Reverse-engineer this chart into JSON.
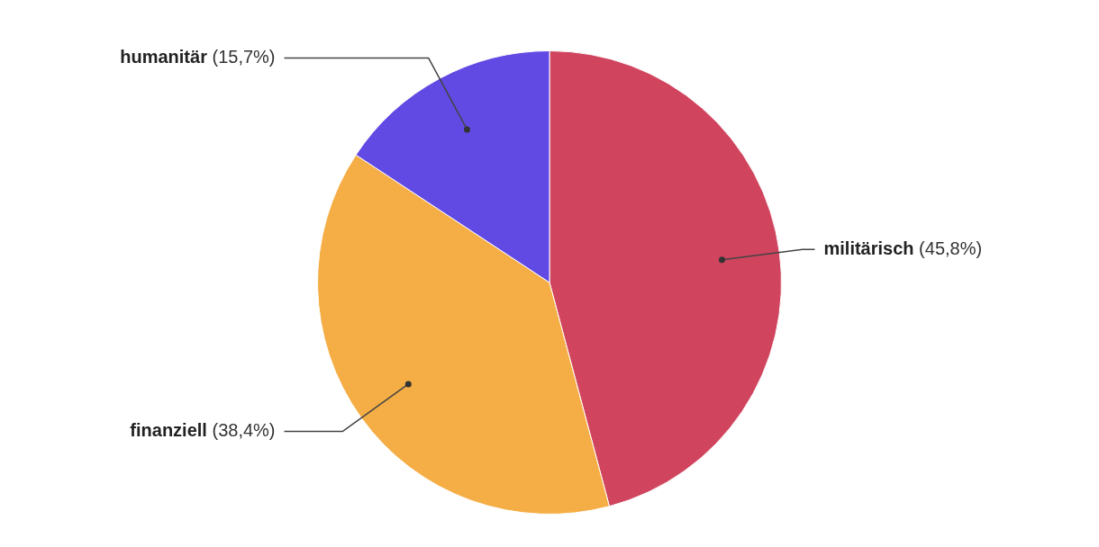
{
  "chart_data": {
    "type": "pie",
    "categories": [
      "militärisch",
      "finanziell",
      "humanitär"
    ],
    "values": [
      45.8,
      38.4,
      15.7
    ],
    "value_labels": [
      "(45,8%)",
      "(38,4%)",
      "(15,7%)"
    ],
    "colors": [
      "#d0445e",
      "#f5ae45",
      "#614ae3"
    ],
    "legend": false
  }
}
